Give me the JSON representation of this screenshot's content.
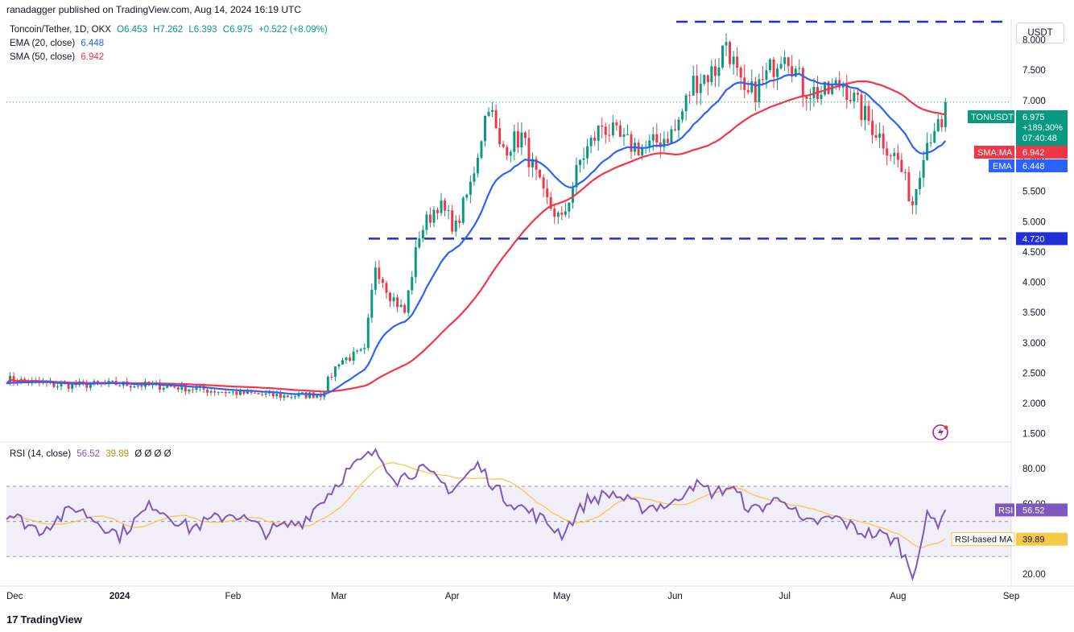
{
  "publisher": "ranadagger published on TradingView.com, Aug 14, 2024 16:19 UTC",
  "currency_button": "USDT",
  "legend": {
    "symbol": "Toncoin/Tether, 1D, OKX",
    "o": "O6.453",
    "h": "H7.262",
    "l": "L6.393",
    "c": "C6.975",
    "change": "+0.522 (+8.09%)",
    "ema_label": "EMA (20, close)",
    "ema_value": "6.448",
    "sma_label": "SMA (50, close)",
    "sma_value": "6.942",
    "rsi_label": "RSI (14, close)",
    "rsi_value": "56.52",
    "rsi_ma_value": "39.89",
    "rsi_extra": "Ø Ø Ø Ø"
  },
  "price_badges": {
    "symbol": "TONUSDT",
    "price": "6.975",
    "change_pct": "+189.30%",
    "countdown": "07:40:48",
    "sma_label": "SMA:MA",
    "sma_value": "6.942",
    "ema_label": "EMA",
    "ema_value": "6.448",
    "support": "4.720"
  },
  "rsi_badges": {
    "rsi_label": "RSI",
    "rsi_value": "56.52",
    "ma_label": "RSI-based MA",
    "ma_value": "39.89"
  },
  "footer": {
    "logo": "17",
    "brand": "TradingView"
  },
  "colors": {
    "up": "#089981",
    "down": "#f23645",
    "ema": "#2962ff",
    "sma": "#f23645",
    "rsi": "#7e57c2",
    "rsi_ma": "#f7c948",
    "level": "#1e2fd6"
  },
  "chart_data": [
    {
      "type": "candlestick",
      "title": "Toncoin/Tether, 1D, OKX",
      "y_ticks": [
        "8.000",
        "7.500",
        "7.000",
        "6.500",
        "6.000",
        "5.500",
        "5.000",
        "4.500",
        "4.000",
        "3.500",
        "3.000",
        "2.500",
        "2.000",
        "1.500"
      ],
      "x_ticks": [
        "Dec",
        "2024",
        "Feb",
        "Mar",
        "Apr",
        "May",
        "Jun",
        "Jul",
        "Aug",
        "Sep"
      ],
      "x_range": [
        "2023-12-01",
        "2024-09-01"
      ],
      "ylim": [
        1.35,
        8.5
      ],
      "grid": false,
      "horizontal_levels": [
        8.3,
        4.72
      ],
      "last_close": 6.975,
      "price_anchors": [
        [
          "2023-12-01",
          2.4
        ],
        [
          "2023-12-15",
          2.3
        ],
        [
          "2024-01-01",
          2.32
        ],
        [
          "2024-01-15",
          2.28
        ],
        [
          "2024-02-01",
          2.18
        ],
        [
          "2024-02-15",
          2.12
        ],
        [
          "2024-02-25",
          2.15
        ],
        [
          "2024-03-01",
          2.7
        ],
        [
          "2024-03-08",
          2.85
        ],
        [
          "2024-03-11",
          4.3
        ],
        [
          "2024-03-15",
          3.8
        ],
        [
          "2024-03-19",
          3.5
        ],
        [
          "2024-03-23",
          4.8
        ],
        [
          "2024-03-28",
          5.3
        ],
        [
          "2024-04-02",
          4.9
        ],
        [
          "2024-04-06",
          5.6
        ],
        [
          "2024-04-11",
          7.0
        ],
        [
          "2024-04-14",
          6.2
        ],
        [
          "2024-04-20",
          6.4
        ],
        [
          "2024-04-26",
          5.4
        ],
        [
          "2024-05-01",
          5.0
        ],
        [
          "2024-05-06",
          6.0
        ],
        [
          "2024-05-12",
          6.6
        ],
        [
          "2024-05-18",
          6.3
        ],
        [
          "2024-05-24",
          6.2
        ],
        [
          "2024-06-01",
          6.5
        ],
        [
          "2024-06-06",
          7.3
        ],
        [
          "2024-06-12",
          7.5
        ],
        [
          "2024-06-15",
          8.0
        ],
        [
          "2024-06-20",
          7.0
        ],
        [
          "2024-06-25",
          7.3
        ],
        [
          "2024-07-01",
          7.9
        ],
        [
          "2024-07-06",
          7.2
        ],
        [
          "2024-07-12",
          7.1
        ],
        [
          "2024-07-17",
          7.3
        ],
        [
          "2024-07-21",
          6.9
        ],
        [
          "2024-07-26",
          6.5
        ],
        [
          "2024-08-01",
          6.0
        ],
        [
          "2024-08-05",
          5.3
        ],
        [
          "2024-08-08",
          6.2
        ],
        [
          "2024-08-11",
          6.6
        ],
        [
          "2024-08-13",
          6.453
        ],
        [
          "2024-08-14",
          6.975
        ]
      ],
      "series": [
        {
          "name": "EMA (20, close)",
          "last": 6.448
        },
        {
          "name": "SMA (50, close)",
          "last": 6.942
        }
      ]
    },
    {
      "type": "line",
      "title": "RSI (14, close)",
      "y_ticks": [
        "80.00",
        "60.00",
        "20.00"
      ],
      "ylim": [
        15,
        92
      ],
      "bands": [
        70,
        50,
        30
      ],
      "rsi_anchors": [
        [
          "2023-12-01",
          55
        ],
        [
          "2023-12-10",
          45
        ],
        [
          "2023-12-20",
          58
        ],
        [
          "2024-01-01",
          42
        ],
        [
          "2024-01-10",
          60
        ],
        [
          "2024-01-20",
          46
        ],
        [
          "2024-02-01",
          55
        ],
        [
          "2024-02-10",
          44
        ],
        [
          "2024-02-20",
          50
        ],
        [
          "2024-02-28",
          68
        ],
        [
          "2024-03-03",
          78
        ],
        [
          "2024-03-11",
          90
        ],
        [
          "2024-03-17",
          74
        ],
        [
          "2024-03-23",
          80
        ],
        [
          "2024-04-01",
          68
        ],
        [
          "2024-04-08",
          82
        ],
        [
          "2024-04-15",
          64
        ],
        [
          "2024-04-25",
          52
        ],
        [
          "2024-05-01",
          43
        ],
        [
          "2024-05-08",
          62
        ],
        [
          "2024-05-15",
          66
        ],
        [
          "2024-05-22",
          58
        ],
        [
          "2024-06-01",
          60
        ],
        [
          "2024-06-05",
          72
        ],
        [
          "2024-06-12",
          66
        ],
        [
          "2024-06-16",
          70
        ],
        [
          "2024-06-22",
          56
        ],
        [
          "2024-07-01",
          64
        ],
        [
          "2024-07-06",
          48
        ],
        [
          "2024-07-15",
          52
        ],
        [
          "2024-07-22",
          44
        ],
        [
          "2024-07-28",
          42
        ],
        [
          "2024-08-01",
          38
        ],
        [
          "2024-08-05",
          20
        ],
        [
          "2024-08-09",
          52
        ],
        [
          "2024-08-12",
          50
        ],
        [
          "2024-08-14",
          56.52
        ]
      ],
      "series": [
        {
          "name": "RSI",
          "last": 56.52
        },
        {
          "name": "RSI-based MA",
          "last": 39.89
        }
      ]
    }
  ]
}
